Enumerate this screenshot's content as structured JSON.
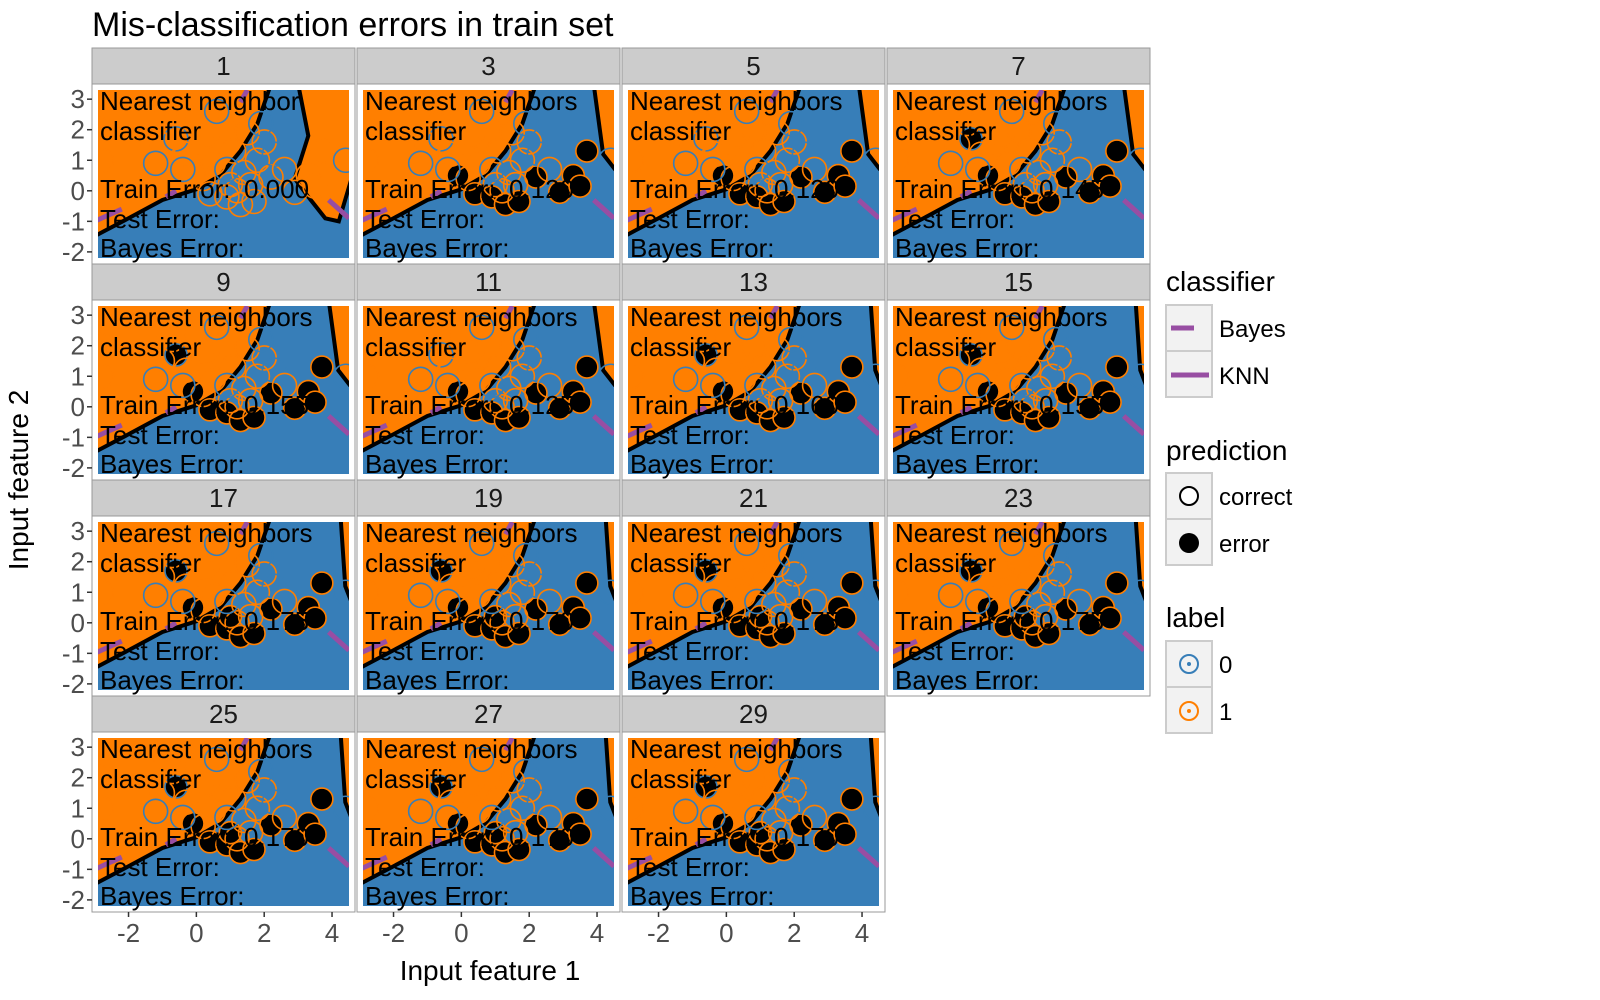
{
  "chart_data": {
    "type": "scatter",
    "title": "Mis-classification errors in train set",
    "xlabel": "Input feature 1",
    "ylabel": "Input feature 2",
    "xlim": [
      -2.9,
      4.5
    ],
    "ylim": [
      -2.2,
      3.3
    ],
    "x_ticks": [
      "-2",
      "0",
      "2",
      "4"
    ],
    "x_tick_values": [
      -2,
      0,
      2,
      4
    ],
    "y_ticks": [
      "3",
      "2",
      "1",
      "0",
      "-1",
      "-2"
    ],
    "y_tick_values": [
      3,
      2,
      1,
      0,
      -1,
      -2
    ],
    "facet_title_single": "Nearest neighbor classifier",
    "facet_title_plural": "Nearest neighbors classifier",
    "error_label_lines": [
      "Train Error:",
      "Test Error:",
      "Bayes Error:"
    ],
    "colors": {
      "label0": "#377eb8",
      "label1": "#ff7f00",
      "boundary": "#000000",
      "bayes": "#984ea3",
      "strip": "#cccccc"
    },
    "facets": [
      {
        "k": "1",
        "train_error": "0.000",
        "errors": []
      },
      {
        "k": "3",
        "train_error": "0.120",
        "errors": [
          0,
          1,
          2,
          3,
          4,
          5,
          6,
          7,
          8,
          9
        ]
      },
      {
        "k": "5",
        "train_error": "0.120",
        "errors": [
          0,
          1,
          2,
          3,
          4,
          5,
          6,
          7,
          8,
          9
        ]
      },
      {
        "k": "7",
        "train_error": "0.145",
        "errors": [
          0,
          1,
          2,
          3,
          4,
          5,
          6,
          7,
          8,
          9,
          10
        ]
      },
      {
        "k": "9",
        "train_error": "0.155",
        "errors": [
          0,
          1,
          2,
          3,
          4,
          5,
          6,
          7,
          8,
          9,
          10
        ]
      },
      {
        "k": "11",
        "train_error": "0.125",
        "errors": [
          0,
          1,
          2,
          3,
          4,
          5,
          6,
          7,
          8,
          9
        ]
      },
      {
        "k": "13",
        "train_error": "0.160",
        "errors": [
          0,
          1,
          2,
          3,
          4,
          5,
          6,
          7,
          8,
          9,
          10
        ]
      },
      {
        "k": "15",
        "train_error": "0.155",
        "errors": [
          0,
          1,
          2,
          3,
          4,
          5,
          6,
          7,
          8,
          9,
          10
        ]
      },
      {
        "k": "17",
        "train_error": "0.175",
        "errors": [
          0,
          1,
          2,
          3,
          4,
          5,
          6,
          7,
          8,
          9,
          10,
          11
        ]
      },
      {
        "k": "19",
        "train_error": "0.170",
        "errors": [
          0,
          1,
          2,
          3,
          4,
          5,
          6,
          7,
          8,
          9,
          10,
          11
        ]
      },
      {
        "k": "21",
        "train_error": "0.175",
        "errors": [
          0,
          1,
          2,
          3,
          4,
          5,
          6,
          7,
          8,
          9,
          10,
          11
        ]
      },
      {
        "k": "23",
        "train_error": "0.175",
        "errors": [
          0,
          1,
          2,
          3,
          4,
          5,
          6,
          7,
          8,
          9,
          10,
          11
        ]
      },
      {
        "k": "25",
        "train_error": "0.170",
        "errors": [
          0,
          1,
          2,
          3,
          4,
          5,
          6,
          7,
          8,
          9,
          10,
          11
        ]
      },
      {
        "k": "27",
        "train_error": "0.170",
        "errors": [
          0,
          1,
          2,
          3,
          4,
          5,
          6,
          7,
          8,
          9,
          10,
          11
        ]
      },
      {
        "k": "29",
        "train_error": "0.170",
        "errors": [
          0,
          1,
          2,
          3,
          4,
          5,
          6,
          7,
          8,
          9,
          10,
          11
        ]
      }
    ],
    "points": [
      {
        "x": -0.1,
        "y": 0.5,
        "label": 1
      },
      {
        "x": 0.4,
        "y": -0.1,
        "label": 1
      },
      {
        "x": 0.9,
        "y": -0.2,
        "label": 1
      },
      {
        "x": 1.3,
        "y": -0.45,
        "label": 1
      },
      {
        "x": 1.7,
        "y": -0.35,
        "label": 1
      },
      {
        "x": 2.2,
        "y": 0.45,
        "label": 1
      },
      {
        "x": 2.9,
        "y": -0.05,
        "label": 1
      },
      {
        "x": 3.3,
        "y": 0.5,
        "label": 1
      },
      {
        "x": 3.7,
        "y": 1.3,
        "label": 1
      },
      {
        "x": 3.5,
        "y": 0.15,
        "label": 1
      },
      {
        "x": -0.6,
        "y": 1.7,
        "label": 0
      },
      {
        "x": 1.0,
        "y": 0.2,
        "label": 1
      },
      {
        "x": -2.8,
        "y": 2.0,
        "label": 1
      },
      {
        "x": -2.8,
        "y": 1.0,
        "label": 1
      },
      {
        "x": -1.0,
        "y": 1.5,
        "label": 1
      },
      {
        "x": -0.7,
        "y": 2.2,
        "label": 1
      },
      {
        "x": -0.3,
        "y": 1.2,
        "label": 1
      },
      {
        "x": 0.0,
        "y": 2.5,
        "label": 1
      },
      {
        "x": 0.3,
        "y": 1.8,
        "label": 1
      },
      {
        "x": 0.5,
        "y": 0.9,
        "label": 1
      },
      {
        "x": 0.8,
        "y": 2.0,
        "label": 1
      },
      {
        "x": 1.1,
        "y": 1.3,
        "label": 1
      },
      {
        "x": 1.4,
        "y": 0.6,
        "label": 1
      },
      {
        "x": 1.5,
        "y": 1.9,
        "label": 1
      },
      {
        "x": 1.8,
        "y": 1.0,
        "label": 1
      },
      {
        "x": 2.0,
        "y": 1.6,
        "label": 1
      },
      {
        "x": 0.2,
        "y": 0.4,
        "label": 1
      },
      {
        "x": -0.4,
        "y": 0.7,
        "label": 0
      },
      {
        "x": 0.6,
        "y": 2.6,
        "label": 0
      },
      {
        "x": 1.9,
        "y": 2.2,
        "label": 0
      },
      {
        "x": 2.3,
        "y": 1.2,
        "label": 0
      },
      {
        "x": 4.4,
        "y": 1.0,
        "label": 0
      },
      {
        "x": -1.2,
        "y": 0.9,
        "label": 0
      },
      {
        "x": 1.2,
        "y": 0.0,
        "label": 1
      },
      {
        "x": 1.6,
        "y": 0.2,
        "label": 1
      },
      {
        "x": -0.9,
        "y": 2.6,
        "label": 1
      },
      {
        "x": 0.9,
        "y": 0.7,
        "label": 0
      },
      {
        "x": 2.6,
        "y": 0.7,
        "label": 1
      }
    ]
  },
  "legend": {
    "classifier_title": "classifier",
    "classifier_items": [
      "Bayes",
      "KNN"
    ],
    "prediction_title": "prediction",
    "prediction_items": [
      "correct",
      "error"
    ],
    "label_title": "label",
    "label_items": [
      "0",
      "1"
    ]
  }
}
